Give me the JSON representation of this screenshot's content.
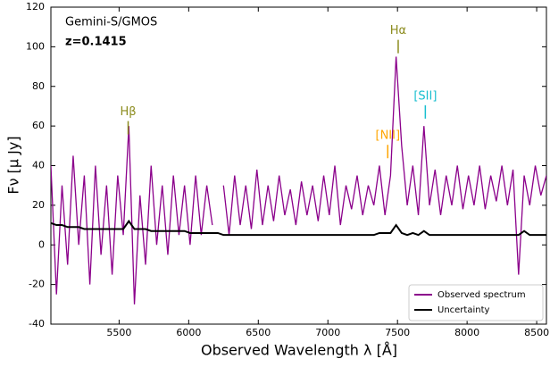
{
  "chart_data": {
    "type": "line",
    "instrument": "Gemini-S/GMOS",
    "redshift": "z=0.1415",
    "x_label": "Observed Wavelength λ [Å]",
    "y_label": "Fν [μ Jy]",
    "xlim": [
      5010,
      8570
    ],
    "ylim": [
      -40,
      120
    ],
    "xticks": [
      5500,
      6000,
      6500,
      7000,
      7500,
      8000,
      8500
    ],
    "yticks": [
      -40,
      -20,
      0,
      20,
      40,
      60,
      80,
      100,
      120
    ],
    "legend": "lower right",
    "x": [
      5010,
      5050,
      5090,
      5130,
      5170,
      5210,
      5250,
      5290,
      5330,
      5370,
      5410,
      5450,
      5490,
      5530,
      5570,
      5610,
      5650,
      5690,
      5730,
      5770,
      5810,
      5850,
      5890,
      5930,
      5970,
      6010,
      6050,
      6090,
      6130,
      6170,
      6210,
      6250,
      6290,
      6330,
      6370,
      6410,
      6450,
      6490,
      6530,
      6570,
      6610,
      6650,
      6690,
      6730,
      6770,
      6810,
      6850,
      6890,
      6930,
      6970,
      7010,
      7050,
      7090,
      7130,
      7170,
      7210,
      7250,
      7290,
      7330,
      7370,
      7410,
      7450,
      7490,
      7530,
      7570,
      7610,
      7650,
      7690,
      7730,
      7770,
      7810,
      7850,
      7890,
      7930,
      7970,
      8010,
      8050,
      8090,
      8130,
      8170,
      8210,
      8250,
      8290,
      8330,
      8370,
      8410,
      8450,
      8490,
      8530,
      8570
    ],
    "series": [
      {
        "name": "Observed spectrum",
        "color": "#8b008b",
        "values": [
          40,
          -25,
          30,
          -10,
          45,
          0,
          35,
          -20,
          40,
          -5,
          30,
          -15,
          35,
          5,
          60,
          -30,
          25,
          -10,
          40,
          0,
          30,
          -5,
          35,
          5,
          30,
          0,
          35,
          5,
          30,
          10,
          null,
          30,
          5,
          35,
          10,
          30,
          8,
          38,
          10,
          30,
          12,
          35,
          15,
          28,
          10,
          32,
          15,
          30,
          12,
          35,
          15,
          40,
          10,
          30,
          18,
          35,
          15,
          30,
          20,
          40,
          15,
          35,
          95,
          50,
          20,
          40,
          15,
          60,
          20,
          38,
          15,
          35,
          20,
          40,
          18,
          35,
          20,
          40,
          18,
          35,
          22,
          40,
          20,
          38,
          -15,
          35,
          20,
          40,
          25,
          35
        ]
      },
      {
        "name": "Uncertainty",
        "color": "#000000",
        "values": [
          11,
          10,
          10,
          9,
          9,
          9,
          8,
          8,
          8,
          8,
          8,
          8,
          8,
          8,
          12,
          8,
          8,
          8,
          7,
          7,
          7,
          7,
          7,
          7,
          7,
          6,
          6,
          6,
          6,
          6,
          6,
          5,
          5,
          5,
          5,
          5,
          5,
          5,
          5,
          5,
          5,
          5,
          5,
          5,
          5,
          5,
          5,
          5,
          5,
          5,
          5,
          5,
          5,
          5,
          5,
          5,
          5,
          5,
          5,
          6,
          6,
          6,
          10,
          6,
          5,
          6,
          5,
          7,
          5,
          5,
          5,
          5,
          5,
          5,
          5,
          5,
          5,
          5,
          5,
          5,
          5,
          5,
          5,
          5,
          5,
          7,
          5,
          5,
          5,
          5
        ]
      }
    ],
    "annotations": [
      {
        "text": "Hβ",
        "x": 5565,
        "y": 67,
        "color": "#8c8c1e"
      },
      {
        "text": "Hα",
        "x": 7505,
        "y": 108,
        "color": "#8c8c1e"
      },
      {
        "text": "[NII]",
        "x": 7430,
        "y": 55,
        "color": "#ffa500"
      },
      {
        "text": "[SII]",
        "x": 7700,
        "y": 75,
        "color": "#17becf"
      }
    ]
  }
}
